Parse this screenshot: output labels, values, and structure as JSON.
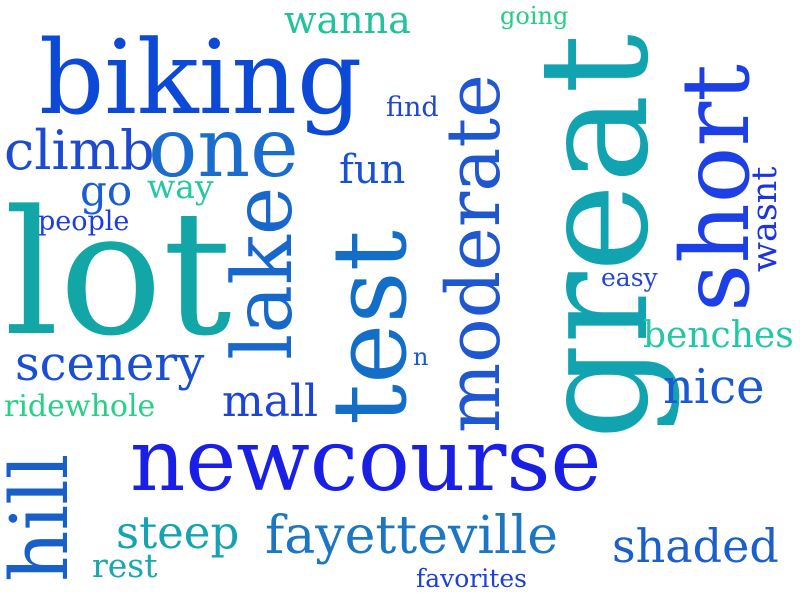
{
  "words": [
    {
      "text": "biking",
      "color": "#0b49d6"
    },
    {
      "text": "wanna",
      "color": "#22c29a"
    },
    {
      "text": "going",
      "color": "#27cc86"
    },
    {
      "text": "great",
      "color": "#11a3b0"
    },
    {
      "text": "short",
      "color": "#1d3fe6"
    },
    {
      "text": "one",
      "color": "#1a6ccf"
    },
    {
      "text": "climb",
      "color": "#1c4bd2"
    },
    {
      "text": "find",
      "color": "#1e44d8"
    },
    {
      "text": "moderate",
      "color": "#1f57d0"
    },
    {
      "text": "fun",
      "color": "#1a50d4"
    },
    {
      "text": "go",
      "color": "#1a5ed0"
    },
    {
      "text": "way",
      "color": "#25c8a0"
    },
    {
      "text": "wasnt",
      "color": "#1b34e0"
    },
    {
      "text": "people",
      "color": "#1f3be2"
    },
    {
      "text": "lot",
      "color": "#13a6a6"
    },
    {
      "text": "lake",
      "color": "#1868cc"
    },
    {
      "text": "test",
      "color": "#136ec8"
    },
    {
      "text": "easy",
      "color": "#2246d8"
    },
    {
      "text": "benches",
      "color": "#22c7a4"
    },
    {
      "text": "scenery",
      "color": "#1a4fd4"
    },
    {
      "text": "n",
      "color": "#1b5ad0"
    },
    {
      "text": "nice",
      "color": "#1b59d0"
    },
    {
      "text": "mall",
      "color": "#1c44d8"
    },
    {
      "text": "ridewhole",
      "color": "#25d088"
    },
    {
      "text": "newcourse",
      "color": "#1a1fe6"
    },
    {
      "text": "hill",
      "color": "#1860c8"
    },
    {
      "text": "steep",
      "color": "#15a2b2"
    },
    {
      "text": "fayetteville",
      "color": "#1c76c4"
    },
    {
      "text": "shaded",
      "color": "#1a5fcc"
    },
    {
      "text": "rest",
      "color": "#1aa8ae"
    },
    {
      "text": "favorites",
      "color": "#1e40d8"
    }
  ]
}
